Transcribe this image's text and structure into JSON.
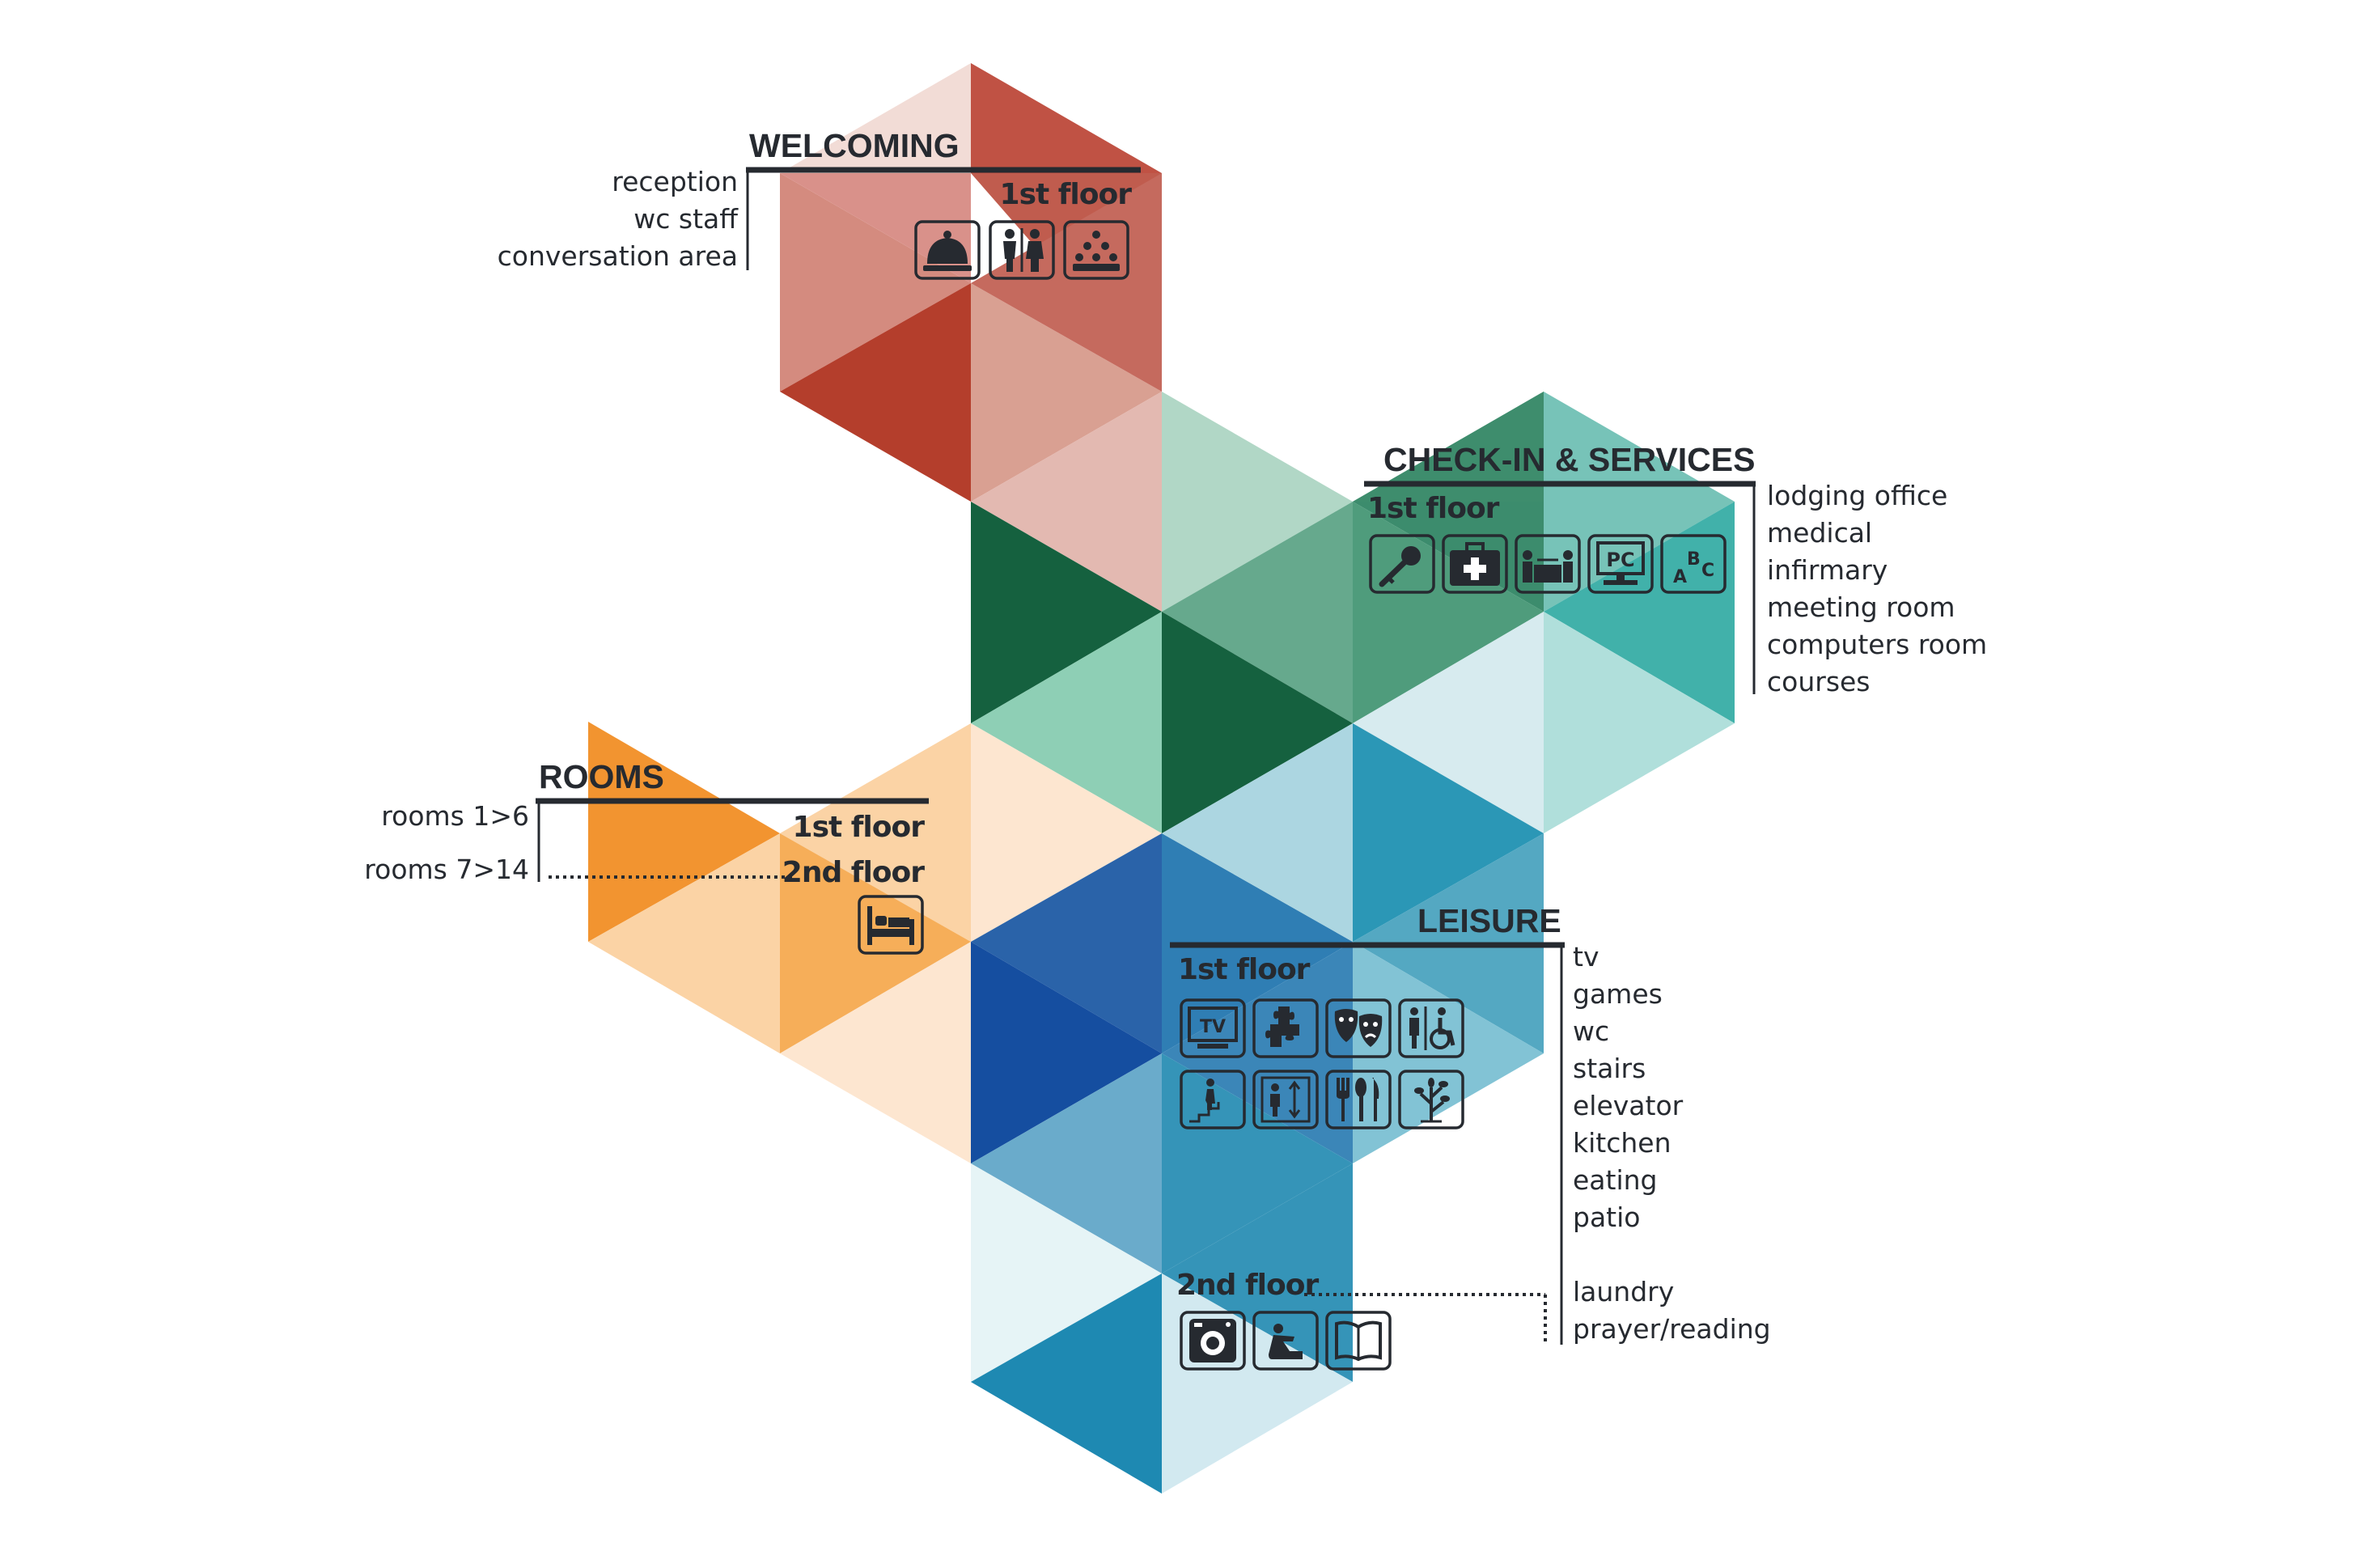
{
  "colors": {
    "ink": "#262a30",
    "welcoming": [
      "#f2dcd6",
      "#c05244",
      "#d48b7f",
      "#b43e2c",
      "#d9a092",
      "#e3b9b1"
    ],
    "checkin": [
      "#b1d7c6",
      "#15613f",
      "#66a98d",
      "#3c8c6d",
      "#77c3b8",
      "#41b1aa",
      "#8ecfb5",
      "#d7ebef",
      "#b0dfdb"
    ],
    "rooms": [
      "#f29430",
      "#fbd3a5",
      "#f6ae59",
      "#fde6d0"
    ],
    "leisure": [
      "#2a63a9",
      "#2f7eb4",
      "#acd6e1",
      "#2b97b6",
      "#54a8c2",
      "#154ea0",
      "#6aabcb",
      "#3594b8",
      "#82c3d5",
      "#e6f4f6",
      "#1e89b2",
      "#d2e9f0"
    ]
  },
  "sections": {
    "welcoming": {
      "title": "WELCOMING",
      "floor": "1st floor",
      "items": [
        "reception",
        "wc staff",
        "conversation area"
      ],
      "icons": [
        "reception-bell-icon",
        "wc-staff-icon",
        "conversation-area-icon"
      ]
    },
    "checkin": {
      "title": "CHECK-IN & SERVICES",
      "floor": "1st floor",
      "items": [
        "lodging office",
        "medical",
        "infirmary",
        "meeting room",
        "computers room",
        "courses"
      ],
      "icons": [
        "key-icon",
        "first-aid-kit-icon",
        "meeting-table-icon",
        "computer-icon",
        "courses-abc-icon"
      ],
      "icon_labels": {
        "pc": "PC",
        "a": "A",
        "b": "B",
        "c": "C"
      }
    },
    "rooms": {
      "title": "ROOMS",
      "items": [
        "rooms 1>6",
        "rooms 7>14"
      ],
      "floors": [
        "1st floor",
        "2nd floor"
      ],
      "icons": [
        "bed-icon"
      ]
    },
    "leisure": {
      "title": "LEISURE",
      "floor_1": "1st floor",
      "floor_2": "2nd floor",
      "items_1": [
        "tv",
        "games",
        "wc",
        "stairs",
        "elevator",
        "kitchen",
        "eating",
        "patio"
      ],
      "items_2": [
        "laundry",
        "prayer/reading"
      ],
      "icons_1": [
        "tv-icon",
        "games-puzzle-icon",
        "theatre-masks-icon",
        "accessible-wc-icon",
        "stairs-icon",
        "elevator-icon",
        "kitchen-utensils-icon",
        "patio-tree-icon"
      ],
      "icons_2": [
        "washing-machine-icon",
        "prayer-icon",
        "book-icon"
      ],
      "icon_labels": {
        "tv": "TV"
      }
    }
  }
}
